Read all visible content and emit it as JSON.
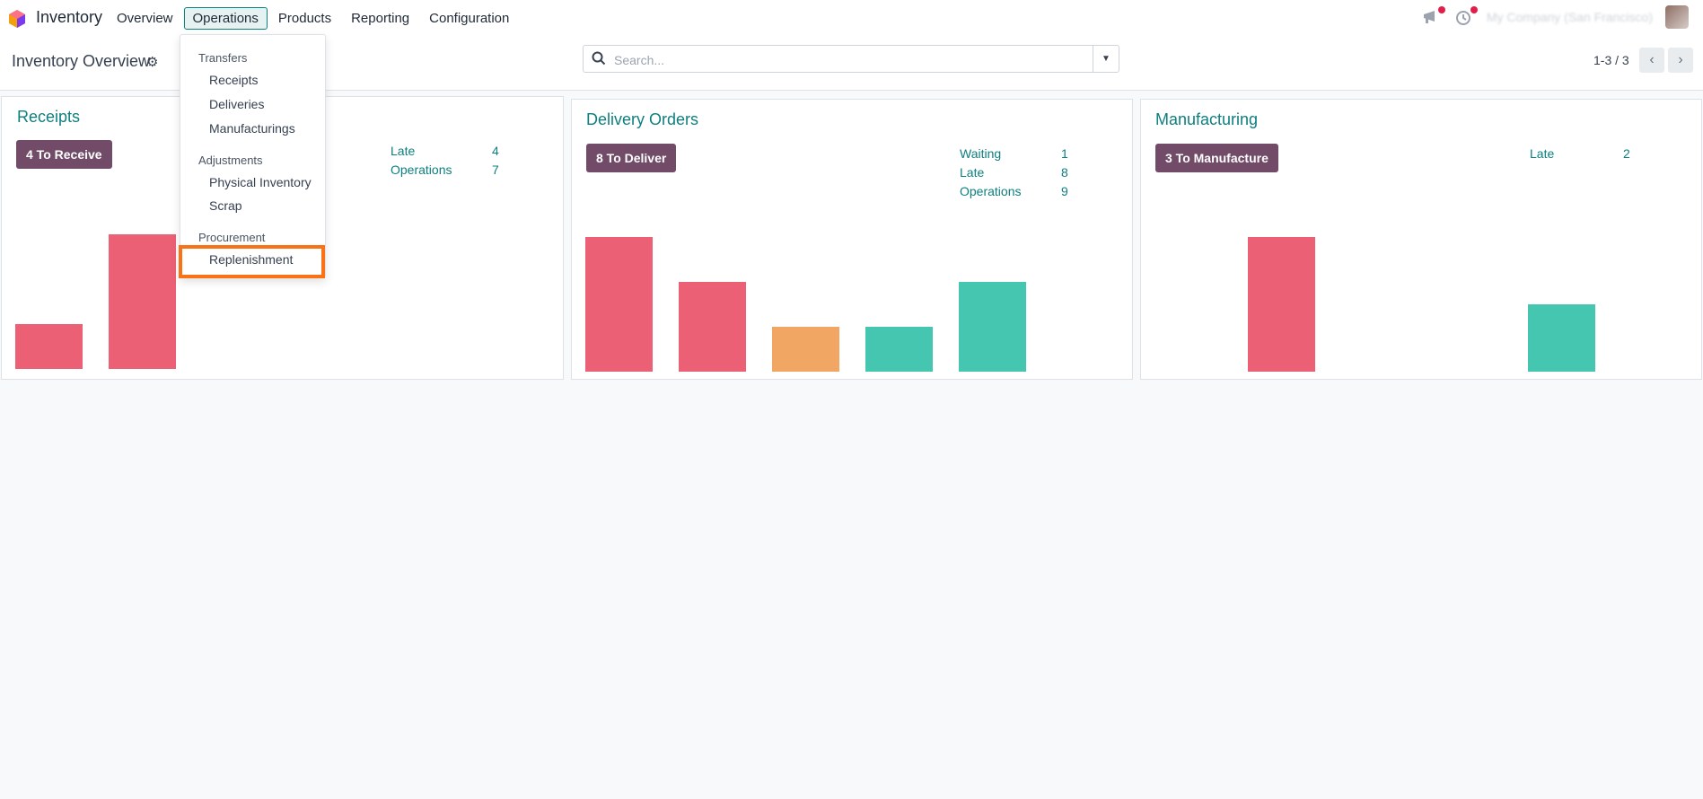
{
  "navbar": {
    "app_name": "Inventory",
    "menu": [
      "Overview",
      "Operations",
      "Products",
      "Reporting",
      "Configuration"
    ],
    "active_menu": "Operations",
    "company": "My Company (San Francisco)"
  },
  "control_panel": {
    "title": "Inventory Overview",
    "search_placeholder": "Search...",
    "pager": "1-3 / 3"
  },
  "operations_menu": {
    "sections": [
      {
        "header": "Transfers",
        "items": [
          "Receipts",
          "Deliveries",
          "Manufacturings"
        ]
      },
      {
        "header": "Adjustments",
        "items": [
          "Physical Inventory",
          "Scrap"
        ]
      },
      {
        "header": "Procurement",
        "items": [
          "Replenishment"
        ]
      }
    ],
    "highlighted_item": "Replenishment"
  },
  "cards": [
    {
      "title": "Receipts",
      "action": "4 To Receive",
      "stats": [
        {
          "label": "Late",
          "value": "4"
        },
        {
          "label": "Operations",
          "value": "7"
        }
      ]
    },
    {
      "title": "Delivery Orders",
      "action": "8 To Deliver",
      "stats": [
        {
          "label": "Waiting",
          "value": "1"
        },
        {
          "label": "Late",
          "value": "8"
        },
        {
          "label": "Operations",
          "value": "9"
        }
      ]
    },
    {
      "title": "Manufacturing",
      "action": "3 To Manufacture",
      "stats": [
        {
          "label": "Late",
          "value": "2"
        }
      ]
    }
  ],
  "colors": {
    "accent": "#0e7f7f",
    "primary": "#714b67",
    "bar_red": "#ec6075",
    "bar_orange": "#f2a663",
    "bar_teal": "#45c6b1",
    "highlight": "#f97316"
  },
  "chart_data": [
    {
      "type": "bar",
      "card": "Receipts",
      "values": [
        1,
        3
      ],
      "colors": [
        "#ec6075",
        "#ec6075"
      ],
      "ylim": [
        0,
        3
      ]
    },
    {
      "type": "bar",
      "card": "Delivery Orders",
      "values": [
        3,
        2,
        1,
        1,
        2
      ],
      "colors": [
        "#ec6075",
        "#ec6075",
        "#f2a663",
        "#45c6b1",
        "#45c6b1"
      ],
      "ylim": [
        0,
        3
      ]
    },
    {
      "type": "bar",
      "card": "Manufacturing",
      "values": [
        0,
        3,
        0,
        0,
        1.5
      ],
      "colors": [
        "#ec6075",
        "#ec6075",
        "#f2a663",
        "#45c6b1",
        "#45c6b1"
      ],
      "ylim": [
        0,
        3
      ]
    }
  ]
}
